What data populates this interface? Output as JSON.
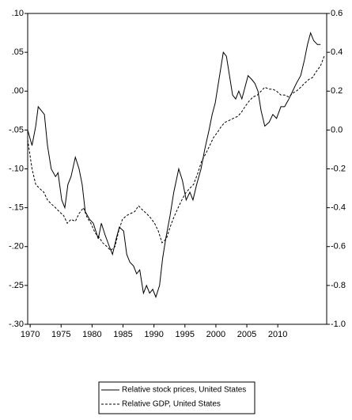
{
  "chart_data": {
    "type": "line",
    "xlim": [
      1969.6,
      2017.9
    ],
    "xticks": [
      1970,
      1975,
      1980,
      1985,
      1990,
      1995,
      2000,
      2005,
      2010
    ],
    "ylim": [
      -0.3,
      0.1
    ],
    "yticks": [
      {
        "value": 0.1,
        "label": ".10"
      },
      {
        "value": 0.05,
        "label": ".05"
      },
      {
        "value": 0,
        "label": ".00"
      },
      {
        "value": -0.05,
        "label": "-.05"
      },
      {
        "value": -0.1,
        "label": "-.10"
      },
      {
        "value": -0.15,
        "label": "-.15"
      },
      {
        "value": -0.2,
        "label": "-.20"
      },
      {
        "value": -0.25,
        "label": "-.25"
      },
      {
        "value": -0.3,
        "label": "-.30"
      }
    ],
    "y2lim": [
      -1.0,
      0.6
    ],
    "y2ticks": [
      0.6,
      0.4,
      0.2,
      {
        "value": 0,
        "label": "0.0"
      },
      -0.2,
      -0.4,
      -0.6,
      -0.8,
      {
        "value": -1,
        "label": "-1.0"
      }
    ],
    "grid": false,
    "legend": "bottom",
    "series": [
      {
        "name": "Relative stock prices, United States",
        "color": "#000000",
        "dash": "solid",
        "x": [
          1969.6,
          1970.3,
          1970.9,
          1971.3,
          1971.8,
          1972.3,
          1972.8,
          1973.4,
          1974.1,
          1974.5,
          1975.1,
          1975.6,
          1976.1,
          1976.6,
          1977.3,
          1977.9,
          1978.4,
          1978.9,
          1979.6,
          1980.2,
          1981.0,
          1981.5,
          1982.1,
          1982.8,
          1983.3,
          1983.9,
          1984.4,
          1985.1,
          1985.6,
          1986.1,
          1986.7,
          1987.2,
          1987.7,
          1988.3,
          1988.8,
          1989.3,
          1989.8,
          1990.3,
          1990.9,
          1991.4,
          1991.9,
          1992.6,
          1993.2,
          1994.0,
          1994.6,
          1995.2,
          1995.8,
          1996.3,
          1996.9,
          1997.6,
          1998.2,
          1998.9,
          1999.4,
          1999.9,
          2000.4,
          2000.8,
          2001.2,
          2001.7,
          2002.2,
          2002.7,
          2003.2,
          2003.7,
          2004.2,
          2004.7,
          2005.2,
          2005.8,
          2006.3,
          2006.8,
          2007.3,
          2007.9,
          2008.6,
          2009.2,
          2009.8,
          2010.5,
          2011.1,
          2011.8,
          2012.4,
          2013.0,
          2013.7,
          2014.3,
          2014.8,
          2015.3,
          2015.8,
          2016.4,
          2016.9
        ],
        "values": [
          -0.05,
          -0.07,
          -0.045,
          -0.02,
          -0.025,
          -0.03,
          -0.07,
          -0.1,
          -0.11,
          -0.105,
          -0.14,
          -0.15,
          -0.12,
          -0.11,
          -0.085,
          -0.1,
          -0.12,
          -0.155,
          -0.165,
          -0.17,
          -0.19,
          -0.17,
          -0.185,
          -0.2,
          -0.21,
          -0.19,
          -0.175,
          -0.18,
          -0.21,
          -0.22,
          -0.225,
          -0.235,
          -0.23,
          -0.26,
          -0.25,
          -0.26,
          -0.255,
          -0.265,
          -0.25,
          -0.215,
          -0.19,
          -0.16,
          -0.13,
          -0.1,
          -0.115,
          -0.14,
          -0.13,
          -0.14,
          -0.12,
          -0.1,
          -0.075,
          -0.05,
          -0.03,
          -0.015,
          0.01,
          0.03,
          0.05,
          0.045,
          0.02,
          -0.005,
          -0.01,
          0.0,
          -0.01,
          0.005,
          0.02,
          0.015,
          0.01,
          0.0,
          -0.025,
          -0.045,
          -0.04,
          -0.03,
          -0.035,
          -0.02,
          -0.02,
          -0.01,
          0.0,
          0.01,
          0.02,
          0.04,
          0.06,
          0.075,
          0.065,
          0.06,
          0.06
        ]
      },
      {
        "name": "Relative GDP, United States",
        "color": "#000000",
        "dash": "dashed",
        "axis": "y2",
        "x": [
          1969.6,
          1970.3,
          1970.9,
          1971.5,
          1972.2,
          1972.8,
          1973.4,
          1974.1,
          1974.7,
          1975.4,
          1976.0,
          1976.6,
          1977.3,
          1977.9,
          1978.6,
          1979.2,
          1979.8,
          1980.5,
          1981.1,
          1981.7,
          1982.4,
          1983.0,
          1983.7,
          1984.3,
          1984.9,
          1985.6,
          1986.2,
          1986.9,
          1987.5,
          1988.1,
          1988.8,
          1989.4,
          1990.1,
          1990.7,
          1991.3,
          1992.0,
          1992.6,
          1993.2,
          1993.9,
          1994.5,
          1995.2,
          1995.8,
          1996.4,
          1997.1,
          1997.7,
          1998.4,
          1999.0,
          1999.6,
          2000.3,
          2000.9,
          2001.5,
          2002.2,
          2002.8,
          2003.5,
          2004.1,
          2004.7,
          2005.4,
          2006.0,
          2006.7,
          2007.3,
          2007.9,
          2008.6,
          2009.2,
          2009.8,
          2010.5,
          2011.1,
          2011.8,
          2012.4,
          2013.0,
          2013.7,
          2014.3,
          2015.0,
          2015.6,
          2016.2,
          2016.9,
          2017.5
        ],
        "values": [
          -0.05,
          -0.2,
          -0.28,
          -0.3,
          -0.32,
          -0.36,
          -0.38,
          -0.4,
          -0.42,
          -0.44,
          -0.48,
          -0.46,
          -0.47,
          -0.43,
          -0.4,
          -0.45,
          -0.48,
          -0.53,
          -0.55,
          -0.58,
          -0.6,
          -0.62,
          -0.6,
          -0.52,
          -0.46,
          -0.44,
          -0.43,
          -0.42,
          -0.39,
          -0.41,
          -0.43,
          -0.45,
          -0.48,
          -0.52,
          -0.58,
          -0.56,
          -0.5,
          -0.45,
          -0.4,
          -0.36,
          -0.32,
          -0.3,
          -0.28,
          -0.22,
          -0.16,
          -0.12,
          -0.08,
          -0.04,
          -0.01,
          0.02,
          0.04,
          0.05,
          0.06,
          0.07,
          0.09,
          0.12,
          0.15,
          0.17,
          0.18,
          0.2,
          0.22,
          0.21,
          0.21,
          0.2,
          0.18,
          0.18,
          0.17,
          0.19,
          0.2,
          0.22,
          0.24,
          0.26,
          0.27,
          0.3,
          0.33,
          0.38
        ]
      }
    ]
  }
}
